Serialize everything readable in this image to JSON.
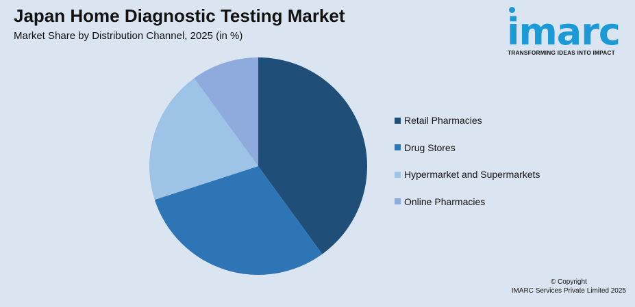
{
  "title": "Japan Home Diagnostic Testing Market",
  "subtitle": "Market Share by Distribution Channel, 2025 (in %)",
  "logo": {
    "word": "imarc",
    "tagline": "TRANSFORMING IDEAS INTO IMPACT",
    "color": "#1a9ad6"
  },
  "chart_data": {
    "type": "pie",
    "title": "Japan Home Diagnostic Testing Market",
    "subtitle": "Market Share by Distribution Channel, 2025 (in %)",
    "categories": [
      "Retail Pharmacies",
      "Drug Stores",
      "Hypermarket and Supermarkets",
      "Online Pharmacies"
    ],
    "values": [
      40,
      30,
      20,
      10
    ],
    "colors": [
      "#1f4e79",
      "#2e75b6",
      "#9dc3e6",
      "#8faadc"
    ],
    "legend_position": "right",
    "start_angle": "12 o'clock",
    "direction": "clockwise"
  },
  "footer": {
    "line1": "© Copyright",
    "line2": "IMARC Services Private Limited 2025"
  }
}
